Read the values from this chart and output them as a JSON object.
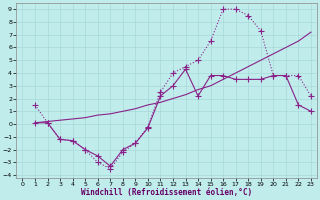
{
  "xlabel": "Windchill (Refroidissement éolien,°C)",
  "background_color": "#c0ecec",
  "grid_color": "#a8d8d8",
  "line_color": "#882288",
  "xlim": [
    -0.5,
    23.5
  ],
  "ylim": [
    -4.2,
    9.5
  ],
  "xticks": [
    0,
    1,
    2,
    3,
    4,
    5,
    6,
    7,
    8,
    9,
    10,
    11,
    12,
    13,
    14,
    15,
    16,
    17,
    18,
    19,
    20,
    21,
    22,
    23
  ],
  "yticks": [
    -4,
    -3,
    -2,
    -1,
    0,
    1,
    2,
    3,
    4,
    5,
    6,
    7,
    8,
    9
  ],
  "line1_x": [
    1,
    2,
    3,
    4,
    5,
    6,
    7,
    8,
    9,
    10,
    11,
    12,
    13,
    14,
    15,
    16,
    17,
    18,
    19,
    20,
    21,
    22,
    23
  ],
  "line1_y": [
    1.5,
    0.1,
    -1.2,
    -1.3,
    -2.0,
    -3.0,
    -3.5,
    -2.2,
    -1.5,
    -0.2,
    2.5,
    4.0,
    4.5,
    5.0,
    6.5,
    9.0,
    9.0,
    8.5,
    7.3,
    3.8,
    3.8,
    3.8,
    2.2
  ],
  "line2_x": [
    1,
    2,
    3,
    4,
    5,
    6,
    7,
    8,
    9,
    10,
    11,
    12,
    13,
    14,
    15,
    16,
    17,
    18,
    19,
    20,
    21,
    22,
    23
  ],
  "line2_y": [
    0.1,
    0.2,
    0.3,
    0.4,
    0.5,
    0.7,
    0.8,
    1.0,
    1.2,
    1.5,
    1.7,
    2.0,
    2.3,
    2.7,
    3.0,
    3.5,
    4.0,
    4.5,
    5.0,
    5.5,
    6.0,
    6.5,
    7.2
  ],
  "line3_x": [
    1,
    2,
    3,
    4,
    5,
    6,
    7,
    8,
    9,
    10,
    11,
    12,
    13,
    14,
    15,
    16,
    17,
    18,
    19,
    20,
    21,
    22,
    23
  ],
  "line3_y": [
    0.1,
    0.1,
    -1.2,
    -1.3,
    -2.0,
    -2.5,
    -3.3,
    -2.0,
    -1.5,
    -0.3,
    2.2,
    3.0,
    4.3,
    2.2,
    3.8,
    3.8,
    3.5,
    3.5,
    3.5,
    3.8,
    3.8,
    1.5,
    1.0
  ],
  "line1_style": "-",
  "line2_style": "-",
  "line3_style": "-",
  "line1_marker": "+",
  "line2_marker": "None",
  "line3_marker": "+",
  "markersize": 4,
  "linewidth": 0.8
}
